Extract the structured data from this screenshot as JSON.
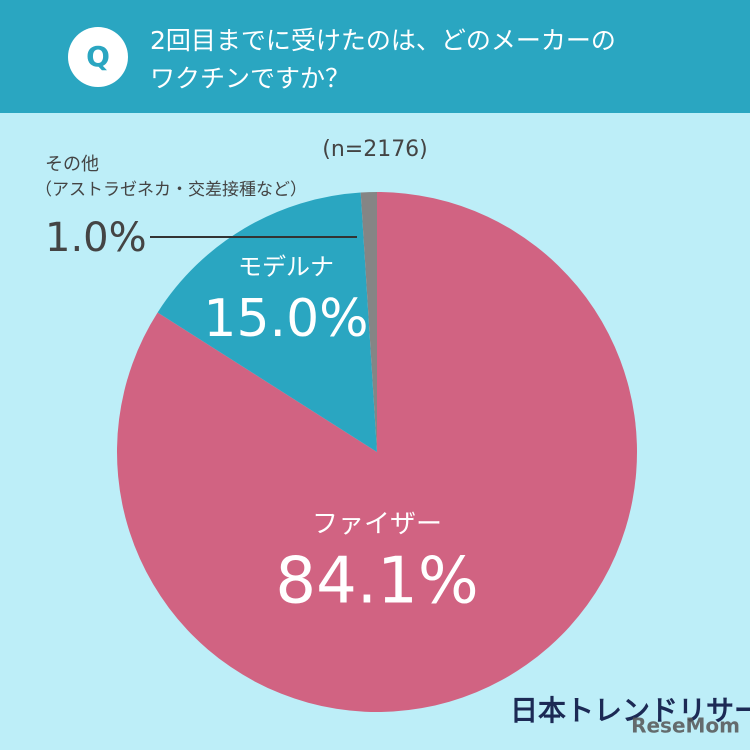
{
  "chart_data": {
    "type": "pie",
    "question_mark": "Q",
    "title_lines": [
      "2回目までに受けたのは、どのメーカーの",
      "ワクチンですか？"
    ],
    "sample_size": "(n=2176)",
    "categories": [
      "ファイザー",
      "モデルナ",
      "その他"
    ],
    "category_notes": [
      null,
      null,
      "（アストラゼネカ・交差接種など）"
    ],
    "values": [
      84.1,
      15.0,
      1.0
    ],
    "value_labels": [
      "84.1%",
      "15.0%",
      "1.0%"
    ],
    "colors": [
      "#d16382",
      "#2aa6c1",
      "#858585"
    ],
    "source": "日本トレンドリサーチ",
    "watermark": "ReseMom"
  }
}
